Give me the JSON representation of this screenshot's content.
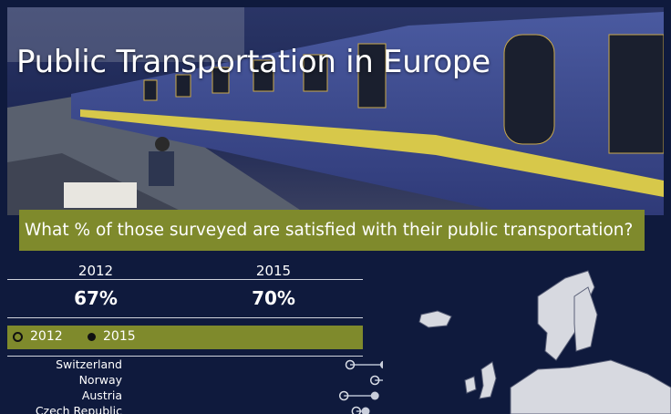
{
  "header": {
    "title": "Public Transportation in Europe",
    "question": "What % of those surveyed are satisfied with their public transportation?"
  },
  "summary": {
    "years": [
      "2012",
      "2015"
    ],
    "values": [
      "67%",
      "70%"
    ]
  },
  "legend": {
    "items": [
      "2012",
      "2015"
    ]
  },
  "chart_data": {
    "type": "dot",
    "title": "What % of those surveyed are satisfied with their public transportation?",
    "series": [
      {
        "name": "2012",
        "values": [
          60,
          68,
          58,
          62
        ],
        "marker": "open"
      },
      {
        "name": "2015",
        "values": [
          71,
          72,
          68,
          65
        ],
        "marker": "solid"
      }
    ],
    "categories": [
      "Switzerland",
      "Norway",
      "Austria",
      "Czech Republic"
    ],
    "xlim": [
      0,
      100
    ],
    "legend_position": "top",
    "colors": {
      "connector": "#b7bfd1",
      "marker_stroke": "#d9dde6",
      "marker_fill": "#c9cedb",
      "accent": "#7f8a2c",
      "background": "#0f1a3d"
    }
  },
  "colors": {
    "background": "#0f1a3d",
    "accent": "#7f8a2c",
    "text": "#ffffff"
  }
}
